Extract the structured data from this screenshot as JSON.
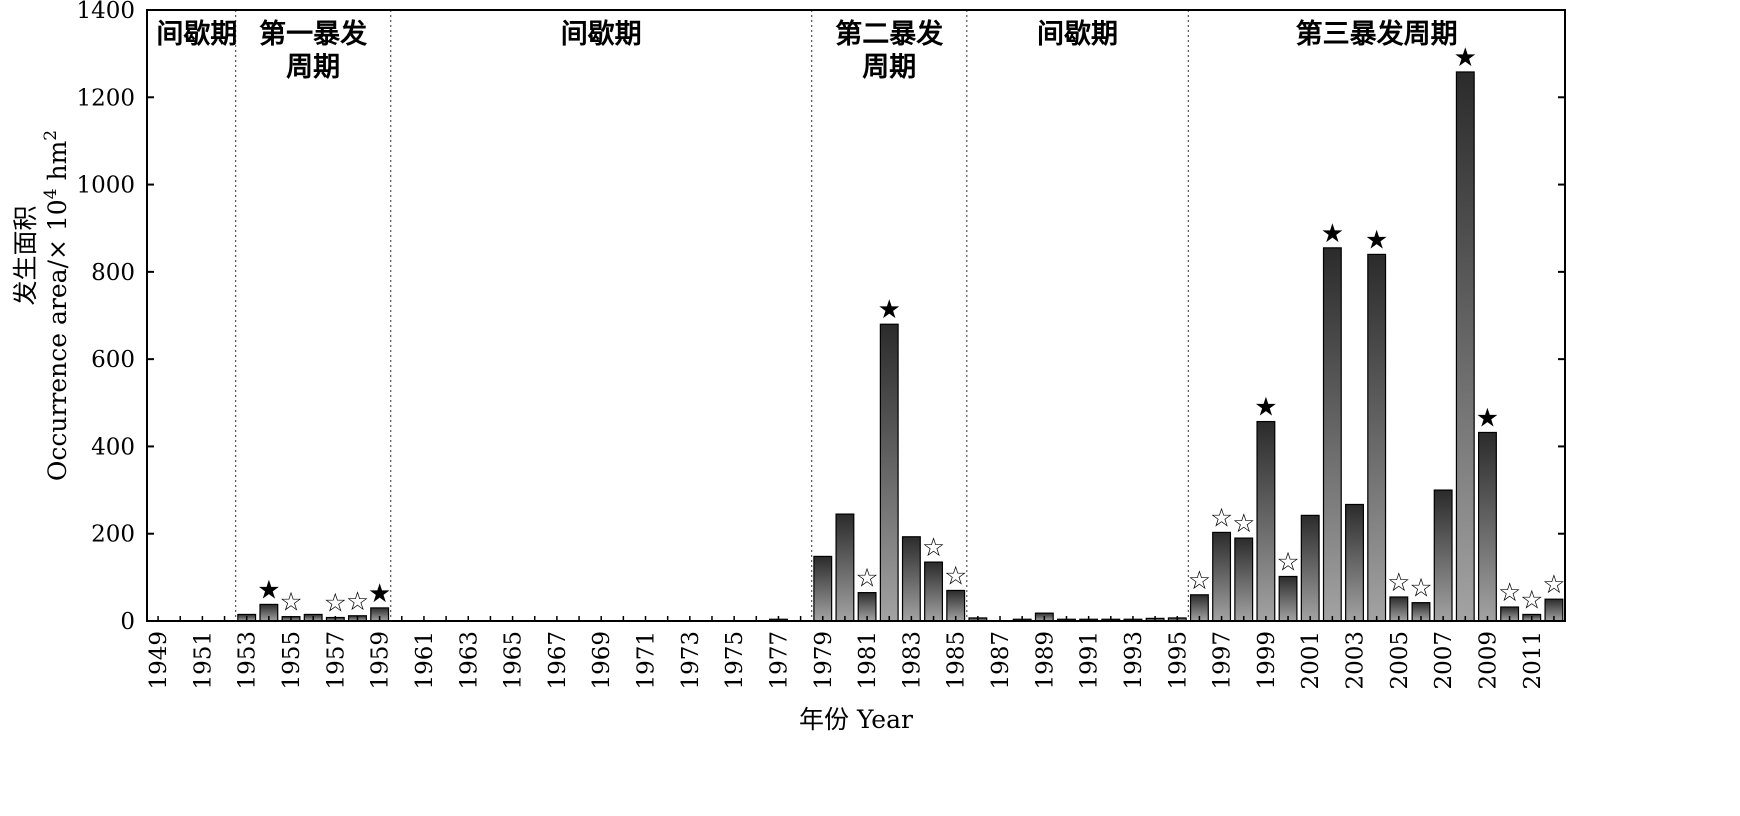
{
  "chart_data": {
    "type": "bar",
    "ylabel_cn": "发生面积",
    "ylabel_en": "Occurrence area/× 10",
    "ylabel_sup": "4",
    "ylabel_unit": " hm",
    "ylabel_sup2": "2",
    "xlabel": "年份 Year",
    "ylim": [
      0,
      1400
    ],
    "yticks": [
      0,
      200,
      400,
      600,
      800,
      1000,
      1200,
      1400
    ],
    "xlim": [
      1949,
      2012
    ],
    "xtick_labels": [
      "1949",
      "1951",
      "1953",
      "1955",
      "1957",
      "1959",
      "1961",
      "1963",
      "1965",
      "1967",
      "1969",
      "1971",
      "1973",
      "1975",
      "1977",
      "1979",
      "1981",
      "1983",
      "1985",
      "1987",
      "1989",
      "1991",
      "1993",
      "1995",
      "1997",
      "1999",
      "2001",
      "2003",
      "2005",
      "2007",
      "2009",
      "2011"
    ],
    "period_bounds": [
      1952.5,
      1959.5,
      1978.5,
      1985.5,
      1995.5
    ],
    "periods": [
      {
        "label": [
          "间歇期"
        ],
        "center": 1950.75
      },
      {
        "label": [
          "第一暴发",
          "周期"
        ],
        "center": 1956.0
      },
      {
        "label": [
          "间歇期"
        ],
        "center": 1969.0
      },
      {
        "label": [
          "第二暴发",
          "周期"
        ],
        "center": 1982.0
      },
      {
        "label": [
          "间歇期"
        ],
        "center": 1990.5
      },
      {
        "label": [
          "第三暴发周期"
        ],
        "center": 2004.0
      }
    ],
    "years": [
      1953,
      1954,
      1955,
      1956,
      1957,
      1958,
      1959,
      1977,
      1979,
      1980,
      1981,
      1982,
      1983,
      1984,
      1985,
      1986,
      1988,
      1989,
      1990,
      1991,
      1992,
      1993,
      1994,
      1995,
      1996,
      1997,
      1998,
      1999,
      2000,
      2001,
      2002,
      2003,
      2004,
      2005,
      2006,
      2007,
      2008,
      2009,
      2010,
      2011,
      2012
    ],
    "values": [
      15,
      38,
      10,
      15,
      8,
      12,
      30,
      4,
      148,
      245,
      65,
      680,
      193,
      135,
      70,
      7,
      4,
      18,
      4,
      4,
      4,
      4,
      6,
      7,
      60,
      203,
      190,
      457,
      102,
      242,
      855,
      267,
      840,
      55,
      42,
      300,
      1258,
      432,
      32,
      15,
      50
    ],
    "filled_star_years": [
      1954,
      1959,
      1982,
      1999,
      2002,
      2004,
      2008,
      2009
    ],
    "open_star_years": [
      1955,
      1957,
      1958,
      1981,
      1984,
      1985,
      1996,
      1997,
      1998,
      2000,
      2005,
      2006,
      2010,
      2011,
      2012
    ],
    "filled_star_glyph": "★",
    "open_star_glyph": "☆"
  }
}
